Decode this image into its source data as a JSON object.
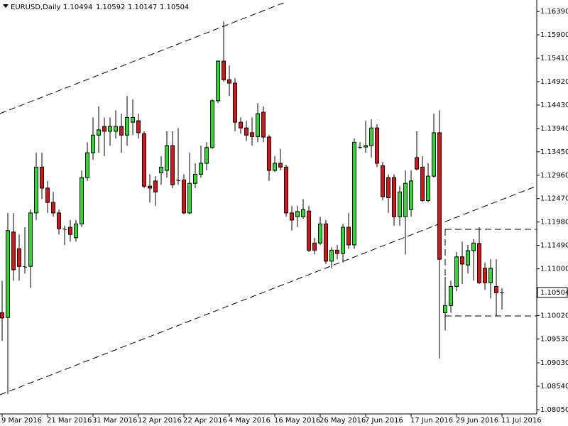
{
  "chart_data": {
    "type": "candlestick",
    "title": "EURUSD,Daily",
    "categories": [
      "9 Mar 2016",
      null,
      null,
      null,
      null,
      null,
      null,
      null,
      "21 Mar 2016",
      null,
      null,
      null,
      null,
      null,
      null,
      null,
      "31 Mar 2016",
      null,
      null,
      null,
      null,
      null,
      null,
      null,
      "12 Apr 2016",
      null,
      null,
      null,
      null,
      null,
      null,
      null,
      "22 Apr 2016",
      null,
      null,
      null,
      null,
      null,
      null,
      null,
      "4 May 2016",
      null,
      null,
      null,
      null,
      null,
      null,
      null,
      "16 May 2016",
      null,
      null,
      null,
      null,
      null,
      null,
      null,
      "26 May 2016",
      null,
      null,
      null,
      null,
      null,
      null,
      null,
      "7 Jun 2016",
      null,
      null,
      null,
      null,
      null,
      null,
      null,
      "17 Jun 2016",
      null,
      null,
      null,
      null,
      null,
      null,
      null,
      "29 Jun 2016",
      null,
      null,
      null,
      null,
      null,
      null,
      null,
      "11 Jul 2016"
    ],
    "open": [
      1.1008,
      1.0998,
      1.1177,
      1.1142,
      1.1105,
      1.1105,
      1.1217,
      1.1313,
      1.1269,
      1.1239,
      1.1217,
      1.1184,
      1.1187,
      1.1165,
      1.1194,
      1.1291,
      1.1343,
      1.138,
      1.1398,
      1.1388,
      1.1388,
      1.1398,
      1.138,
      1.1407,
      1.141,
      1.1383,
      1.1273,
      1.1284,
      1.1301,
      1.1306,
      1.1358,
      1.1284,
      1.1286,
      1.1217,
      1.1279,
      1.1298,
      1.1321,
      1.1354,
      1.1452,
      1.1535,
      1.1496,
      1.1489,
      1.1407,
      1.1395,
      1.1385,
      1.1377,
      1.1428,
      1.1376,
      1.1306,
      1.1321,
      1.1313,
      1.1217,
      1.1209,
      1.1209,
      1.1221,
      1.1154,
      1.1154,
      1.1194,
      1.1116,
      1.1139,
      1.1132,
      1.1187,
      1.115,
      1.1355,
      1.1355,
      1.1358,
      1.1395,
      1.1316,
      1.1291,
      1.1291,
      1.1209,
      1.1209,
      1.1224,
      1.1333,
      1.1313,
      1.1243,
      1.1294,
      1.1385,
      1.1008,
      1.1023,
      1.1063,
      1.1125,
      1.1108,
      1.1138,
      1.1153,
      1.1101,
      1.1071,
      1.1063,
      1.10494
    ],
    "high": [
      1.1075,
      1.1217,
      1.1217,
      1.1172,
      1.1187,
      1.1224,
      1.1343,
      1.1343,
      1.1284,
      1.1261,
      1.1224,
      1.119,
      1.1202,
      1.1202,
      1.1306,
      1.1365,
      1.1417,
      1.144,
      1.1417,
      1.1417,
      1.1432,
      1.1425,
      1.1462,
      1.1455,
      1.1425,
      1.1388,
      1.1298,
      1.1294,
      1.1336,
      1.1388,
      1.1388,
      1.1395,
      1.1298,
      1.1343,
      1.1321,
      1.1358,
      1.1365,
      1.1455,
      1.1536,
      1.1618,
      1.1526,
      1.1499,
      1.1417,
      1.141,
      1.1417,
      1.1447,
      1.144,
      1.138,
      1.1336,
      1.1351,
      1.1318,
      1.1232,
      1.1232,
      1.1246,
      1.1232,
      1.1165,
      1.1209,
      1.1202,
      1.1145,
      1.115,
      1.1194,
      1.1217,
      1.1373,
      1.1365,
      1.141,
      1.1413,
      1.1403,
      1.1324,
      1.1298,
      1.1298,
      1.1273,
      1.1306,
      1.1306,
      1.1388,
      1.1336,
      1.1321,
      1.1425,
      1.1432,
      1.1083,
      1.1075,
      1.1135,
      1.1157,
      1.115,
      1.1162,
      1.1187,
      1.1113,
      1.112,
      1.112,
      1.10592
    ],
    "low": [
      1.0949,
      1.0838,
      1.1075,
      1.1075,
      1.109,
      1.106,
      1.1202,
      1.1246,
      1.1217,
      1.1209,
      1.1172,
      1.115,
      1.1157,
      1.1157,
      1.1187,
      1.1284,
      1.1328,
      1.1343,
      1.1336,
      1.1358,
      1.1373,
      1.1343,
      1.1358,
      1.138,
      1.1373,
      1.1269,
      1.1239,
      1.1232,
      1.1276,
      1.1291,
      1.1269,
      1.1276,
      1.1214,
      1.1214,
      1.1269,
      1.1291,
      1.1306,
      1.1351,
      1.1447,
      1.1492,
      1.1462,
      1.1388,
      1.1383,
      1.1368,
      1.1358,
      1.1365,
      1.1365,
      1.1284,
      1.1303,
      1.1306,
      1.1209,
      1.118,
      1.1187,
      1.1205,
      1.1135,
      1.113,
      1.115,
      1.111,
      1.1101,
      1.112,
      1.1113,
      1.1142,
      1.1142,
      1.1351,
      1.1343,
      1.1333,
      1.1313,
      1.1243,
      1.1217,
      1.119,
      1.119,
      1.113,
      1.1209,
      1.1306,
      1.1239,
      1.1239,
      1.1291,
      1.0912,
      1.0971,
      1.1008,
      1.1053,
      1.1068,
      1.109,
      1.1075,
      1.1068,
      1.1056,
      1.1038,
      1.1001,
      1.10147
    ],
    "close": [
      1.0997,
      1.118,
      1.1098,
      1.1105,
      1.1103,
      1.1217,
      1.1313,
      1.1269,
      1.1239,
      1.1217,
      1.1184,
      1.1182,
      1.1172,
      1.1194,
      1.1291,
      1.1343,
      1.138,
      1.1391,
      1.1388,
      1.1398,
      1.1398,
      1.138,
      1.1417,
      1.1417,
      1.1385,
      1.1273,
      1.1269,
      1.1261,
      1.1313,
      1.1358,
      1.1276,
      1.1286,
      1.1217,
      1.1279,
      1.1298,
      1.1321,
      1.1354,
      1.1452,
      1.1535,
      1.1496,
      1.1489,
      1.1407,
      1.1395,
      1.138,
      1.1377,
      1.1425,
      1.1376,
      1.1306,
      1.1321,
      1.1313,
      1.1217,
      1.1202,
      1.122,
      1.1224,
      1.1139,
      1.1139,
      1.1194,
      1.1116,
      1.1139,
      1.1132,
      1.1187,
      1.115,
      1.1365,
      1.1354,
      1.1358,
      1.1395,
      1.1321,
      1.1251,
      1.1249,
      1.1209,
      1.1261,
      1.1279,
      1.1284,
      1.1309,
      1.1243,
      1.1294,
      1.1385,
      1.112,
      1.1023,
      1.1063,
      1.1125,
      1.111,
      1.1138,
      1.1154,
      1.1071,
      1.1071,
      1.1101,
      1.105,
      1.10504
    ],
    "up_color": "#22e022",
    "down_color": "#e01010",
    "ylim": [
      1.0796,
      1.1663
    ],
    "yticks": [
      {
        "value": 1.1639,
        "label": "1.16390"
      },
      {
        "value": 1.159,
        "label": "1.15900"
      },
      {
        "value": 1.1541,
        "label": "1.15410"
      },
      {
        "value": 1.1492,
        "label": "1.14920"
      },
      {
        "value": 1.1443,
        "label": "1.14430"
      },
      {
        "value": 1.1394,
        "label": "1.13940"
      },
      {
        "value": 1.1345,
        "label": "1.13450"
      },
      {
        "value": 1.1296,
        "label": "1.12960"
      },
      {
        "value": 1.1247,
        "label": "1.12470"
      },
      {
        "value": 1.1198,
        "label": "1.11980"
      },
      {
        "value": 1.1149,
        "label": "1.11490"
      },
      {
        "value": 1.11,
        "label": "1.11000"
      },
      {
        "value": 1.1002,
        "label": "1.10020"
      },
      {
        "value": 1.0953,
        "label": "1.09530"
      },
      {
        "value": 1.0903,
        "label": "1.09030"
      },
      {
        "value": 1.0854,
        "label": "1.08540"
      },
      {
        "value": 1.0805,
        "label": "1.08050"
      }
    ]
  }
}
